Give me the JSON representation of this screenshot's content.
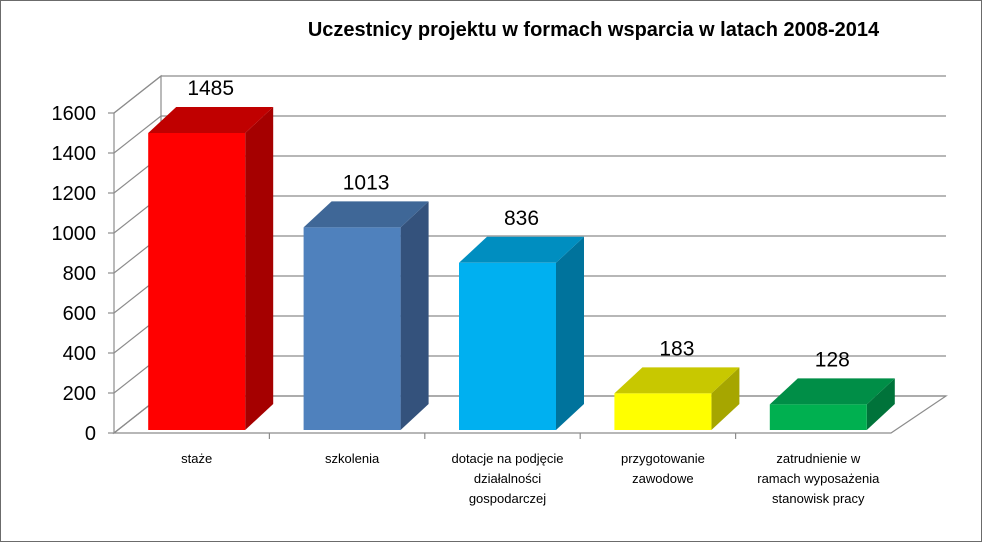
{
  "chart_data": {
    "type": "bar",
    "title": "Uczestnicy projektu w formach wsparcia w latach 2008-2014",
    "categories": [
      [
        "staże"
      ],
      [
        "szkolenia"
      ],
      [
        "dotacje na podjęcie",
        "działalności",
        "gospodarczej"
      ],
      [
        "przygotowanie",
        "zawodowe"
      ],
      [
        "zatrudnienie w",
        "ramach wyposażenia",
        "stanowisk pracy"
      ]
    ],
    "values": [
      1485,
      1013,
      836,
      183,
      128
    ],
    "ylim": [
      0,
      1600
    ],
    "yticks": [
      0,
      200,
      400,
      600,
      800,
      1000,
      1200,
      1400,
      1600
    ],
    "grid": true,
    "legend": "none",
    "style": "3d-column",
    "colors": {
      "front": [
        "#ff0000",
        "#4f81bd",
        "#00b0f0",
        "#ffff00",
        "#00b050"
      ],
      "side": [
        "#a50000",
        "#34527c",
        "#00739c",
        "#a6a600",
        "#00733a"
      ],
      "top": [
        "#c00000",
        "#3f6797",
        "#008ec0",
        "#c8c800",
        "#008e47"
      ]
    }
  }
}
